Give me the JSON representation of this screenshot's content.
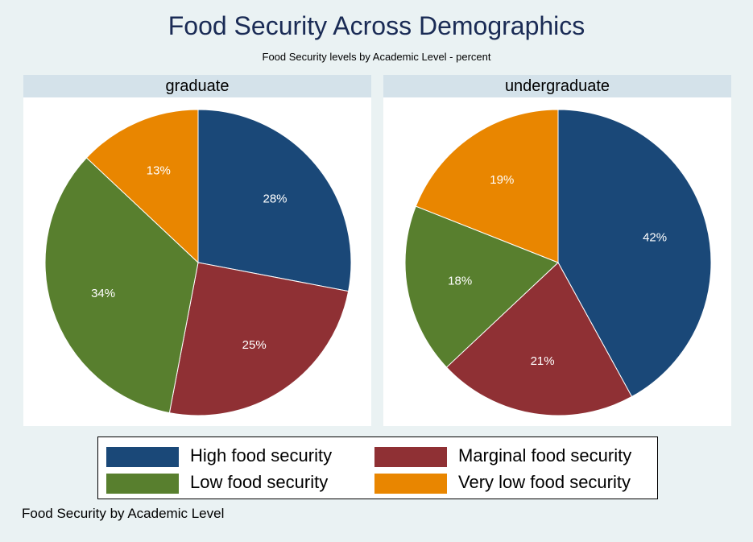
{
  "chart_data": {
    "type": "pie",
    "title": "Food Security Across Demographics",
    "subtitle": "Food Security levels by Academic Level -  percent",
    "note": "Food Security by Academic Level",
    "categories": [
      "High food security",
      "Marginal food security",
      "Low food security",
      "Very low food security"
    ],
    "colors": [
      "#1a4878",
      "#8f3034",
      "#587f2e",
      "#e98600"
    ],
    "panels": [
      {
        "name": "graduate",
        "values": [
          28,
          25,
          34,
          13
        ],
        "labels": [
          "28%",
          "25%",
          "34%",
          "13%"
        ]
      },
      {
        "name": "undergraduate",
        "values": [
          42,
          21,
          18,
          19
        ],
        "labels": [
          "42%",
          "21%",
          "18%",
          "19%"
        ]
      }
    ],
    "legend": [
      {
        "label": "High food security",
        "color": "#1a4878"
      },
      {
        "label": "Marginal food security",
        "color": "#8f3034"
      },
      {
        "label": "Low food security",
        "color": "#587f2e"
      },
      {
        "label": "Very low food security",
        "color": "#e98600"
      }
    ]
  }
}
